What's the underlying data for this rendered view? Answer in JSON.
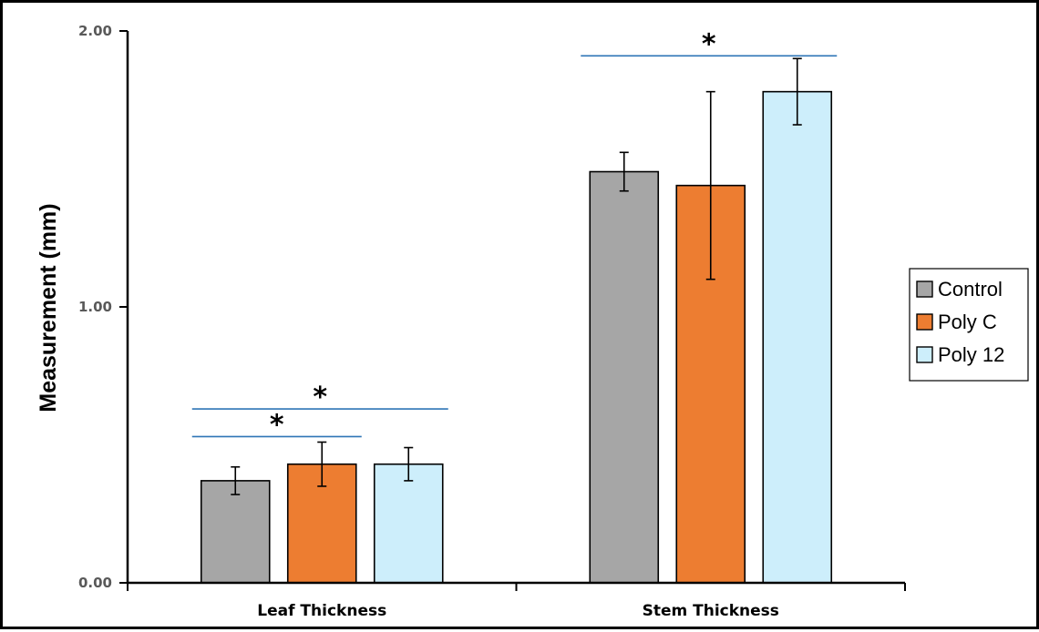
{
  "chart_data": {
    "type": "bar",
    "categories": [
      "Leaf Thickness",
      "Stem Thickness"
    ],
    "series": [
      {
        "name": "Control",
        "values": [
          0.37,
          1.49
        ],
        "errors": [
          0.05,
          0.07
        ],
        "color": "#a6a6a6"
      },
      {
        "name": "Poly C",
        "values": [
          0.43,
          1.44
        ],
        "errors": [
          0.08,
          0.34
        ],
        "color": "#ed7d31"
      },
      {
        "name": "Poly 12",
        "values": [
          0.43,
          1.78
        ],
        "errors": [
          0.06,
          0.12
        ],
        "color": "#cdeefb"
      }
    ],
    "ylabel": "Measurement (mm)",
    "xlabel": "",
    "title": "",
    "ylim": [
      0,
      2
    ],
    "yticks": [
      "0.00",
      "1.00",
      "2.00"
    ],
    "yticks_values": [
      0,
      1,
      2
    ],
    "significance": [
      {
        "category": 0,
        "from_series": 0,
        "to_series": 1,
        "y": 0.53,
        "label": "*"
      },
      {
        "category": 0,
        "from_series": 0,
        "to_series": 2,
        "y": 0.63,
        "label": "*"
      },
      {
        "category": 1,
        "from_series": 0,
        "to_series": 2,
        "y": 1.91,
        "label": "*"
      }
    ],
    "significance_color": "#2e75b6",
    "legend_position": "right",
    "grid": false
  }
}
